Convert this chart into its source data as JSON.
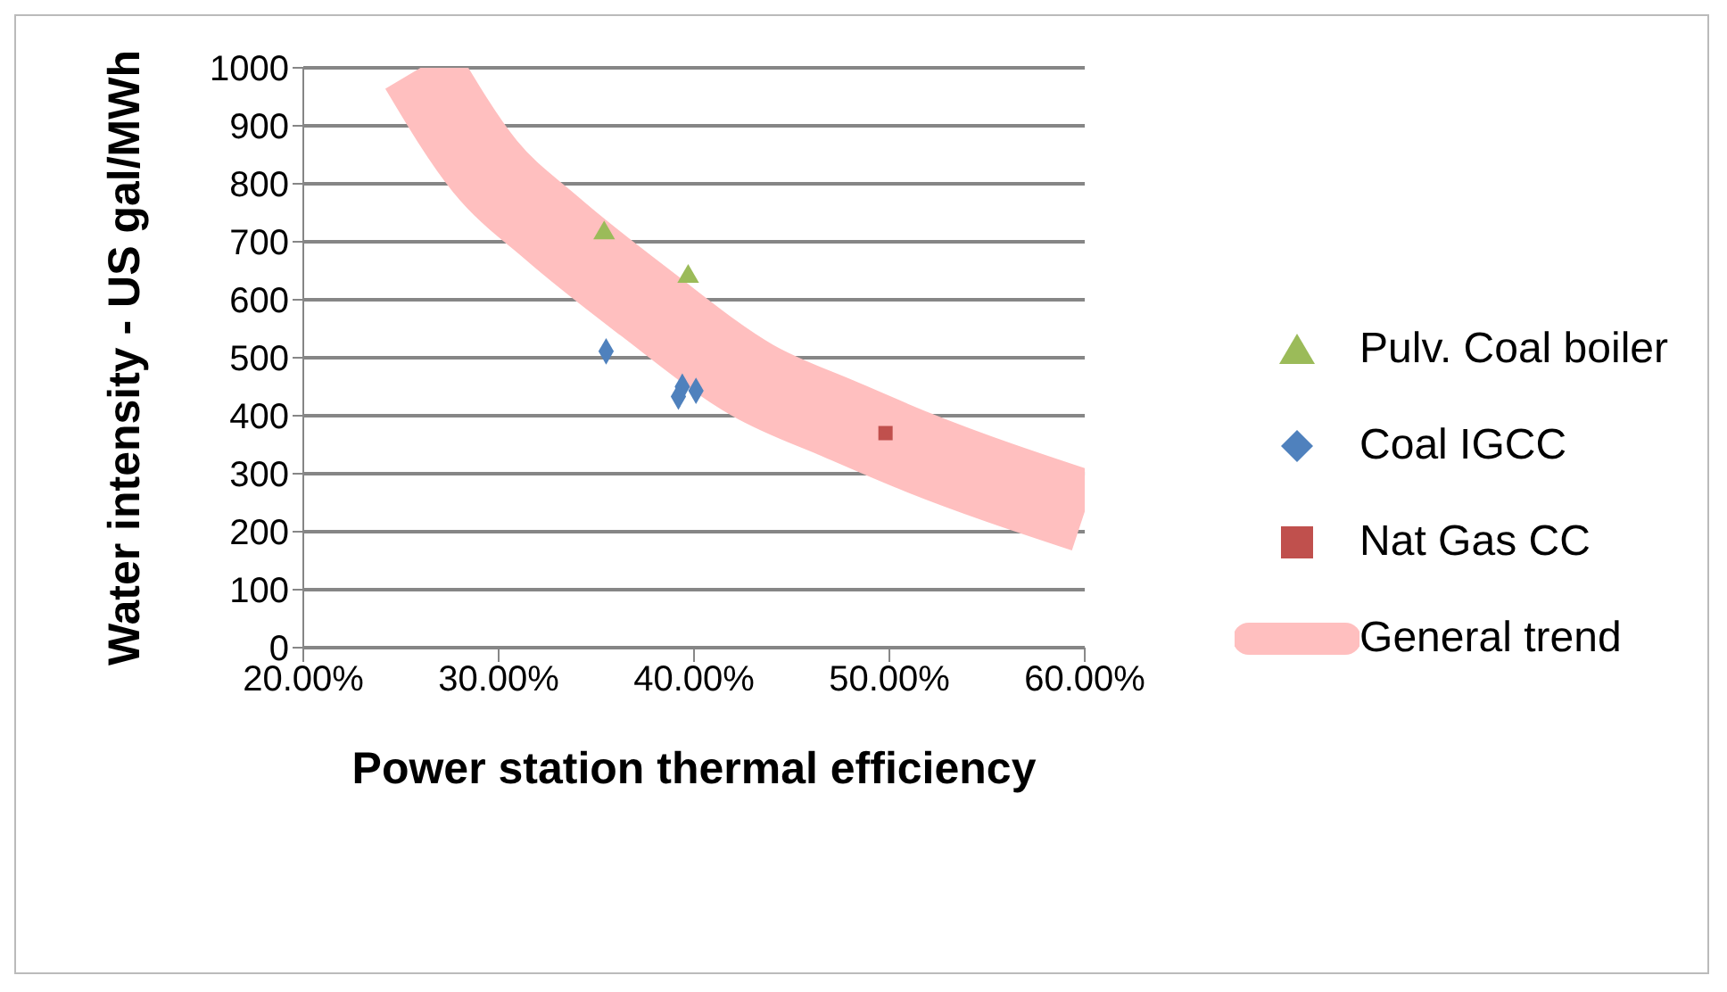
{
  "chart_data": {
    "type": "scatter",
    "xlabel": "Power station thermal efficiency",
    "ylabel": "Water intensity - US gal/MWh",
    "xlim": [
      0.2,
      0.6
    ],
    "xticks": [
      {
        "value": 0.2,
        "label": "20.00%"
      },
      {
        "value": 0.3,
        "label": "30.00%"
      },
      {
        "value": 0.4,
        "label": "40.00%"
      },
      {
        "value": 0.5,
        "label": "50.00%"
      },
      {
        "value": 0.6,
        "label": "60.00%"
      }
    ],
    "ylim": [
      0,
      1000
    ],
    "yticks": [
      0,
      100,
      200,
      300,
      400,
      500,
      600,
      700,
      800,
      900,
      1000
    ],
    "grid": "y",
    "legend": "right",
    "series": [
      {
        "name": "Pulv. Coal boiler",
        "color": "#9bbb59",
        "marker": "triangle",
        "x": [
          0.354,
          0.397
        ],
        "values": [
          715,
          640
        ]
      },
      {
        "name": "Coal IGCC",
        "color": "#4f81bd",
        "marker": "diamond",
        "x": [
          0.355,
          0.394,
          0.392,
          0.401
        ],
        "values": [
          511,
          450,
          433,
          443
        ]
      },
      {
        "name": "Nat Gas CC",
        "color": "#c0504d",
        "marker": "square",
        "x": [
          0.498
        ],
        "values": [
          370
        ]
      },
      {
        "name": "General trend",
        "type": "line",
        "color": "#ffbfbf",
        "marker": "none",
        "x": [
          0.26,
          0.293,
          0.327,
          0.375,
          0.43,
          0.476,
          0.513,
          0.6
        ],
        "values": [
          1000,
          830,
          724,
          595,
          461,
          392,
          339,
          235
        ]
      }
    ]
  }
}
